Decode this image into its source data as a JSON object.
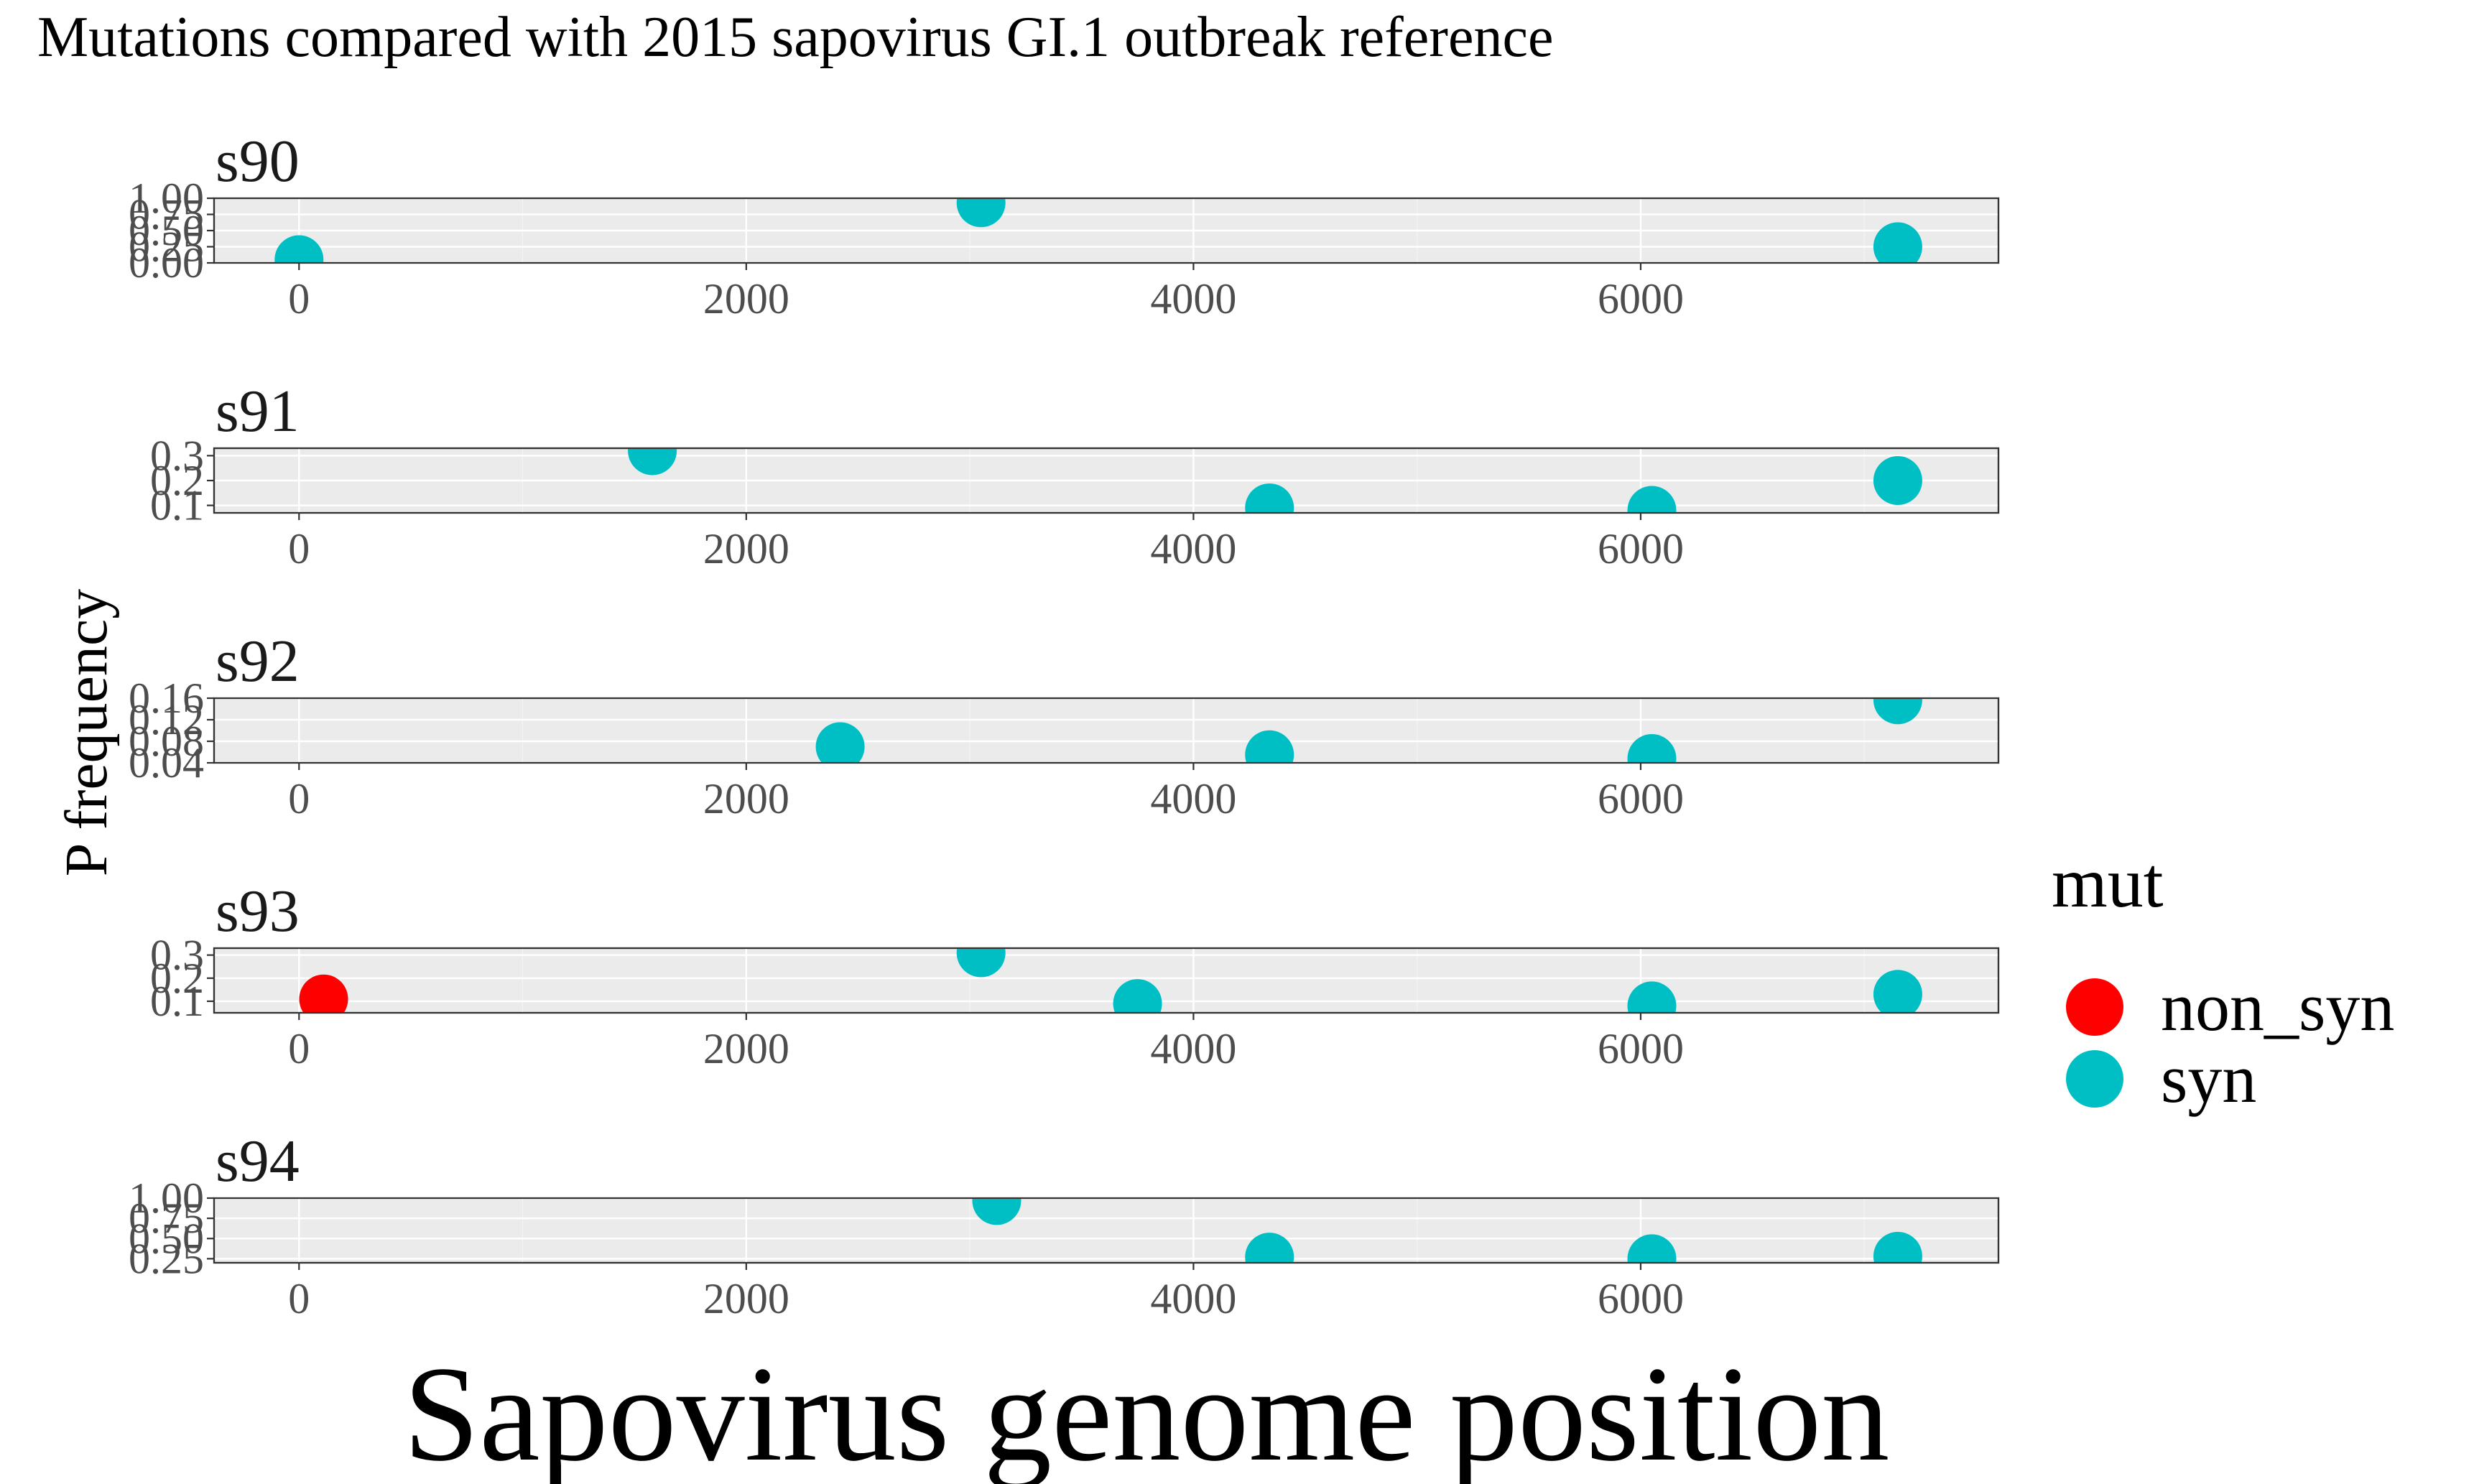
{
  "chart_data": {
    "type": "scatter",
    "title": "Mutations compared with 2015 sapovirus GI.1 outbreak reference",
    "xlabel": "Sapovirus genome position",
    "ylabel": "P frequency",
    "xlim": [
      -380,
      7600
    ],
    "x_ticks": [
      0,
      2000,
      4000,
      6000
    ],
    "x_tick_labels": [
      "0",
      "2000",
      "4000",
      "6000"
    ],
    "legend": {
      "title": "mut",
      "position": "right",
      "entries": [
        {
          "label": "non_syn",
          "color": "#F8766D"
        },
        {
          "label": "syn",
          "color": "#00BFC4"
        }
      ]
    },
    "colors": {
      "non_syn": "#FF0000",
      "syn": "#00BFC4"
    },
    "grid": true,
    "facets": [
      {
        "label": "s90",
        "ylim": [
          0.0,
          1.0
        ],
        "y_ticks": [
          0.0,
          0.25,
          0.5,
          0.75,
          1.0
        ],
        "y_tick_labels": [
          "0.00",
          "0.25",
          "0.50",
          "0.75",
          "1.00"
        ],
        "points": [
          {
            "x": 0,
            "y": 0.05,
            "mut": "syn"
          },
          {
            "x": 3050,
            "y": 0.93,
            "mut": "syn"
          },
          {
            "x": 7150,
            "y": 0.25,
            "mut": "syn"
          }
        ]
      },
      {
        "label": "s91",
        "ylim": [
          0.07,
          0.33
        ],
        "y_ticks": [
          0.1,
          0.2,
          0.3
        ],
        "y_tick_labels": [
          "0.1",
          "0.2",
          "0.3"
        ],
        "points": [
          {
            "x": 1580,
            "y": 0.32,
            "mut": "syn"
          },
          {
            "x": 4340,
            "y": 0.09,
            "mut": "syn"
          },
          {
            "x": 6050,
            "y": 0.08,
            "mut": "syn"
          },
          {
            "x": 7150,
            "y": 0.2,
            "mut": "syn"
          }
        ]
      },
      {
        "label": "s92",
        "ylim": [
          0.04,
          0.16
        ],
        "y_ticks": [
          0.04,
          0.08,
          0.12,
          0.16
        ],
        "y_tick_labels": [
          "0.04",
          "0.08",
          "0.12",
          "0.16"
        ],
        "points": [
          {
            "x": 2420,
            "y": 0.07,
            "mut": "syn"
          },
          {
            "x": 4340,
            "y": 0.055,
            "mut": "syn"
          },
          {
            "x": 6050,
            "y": 0.048,
            "mut": "syn"
          },
          {
            "x": 7150,
            "y": 0.157,
            "mut": "syn"
          }
        ]
      },
      {
        "label": "s93",
        "ylim": [
          0.05,
          0.33
        ],
        "y_ticks": [
          0.1,
          0.2,
          0.3
        ],
        "y_tick_labels": [
          "0.1",
          "0.2",
          "0.3"
        ],
        "points": [
          {
            "x": 110,
            "y": 0.11,
            "mut": "non_syn"
          },
          {
            "x": 3050,
            "y": 0.31,
            "mut": "syn"
          },
          {
            "x": 3750,
            "y": 0.09,
            "mut": "syn"
          },
          {
            "x": 6050,
            "y": 0.08,
            "mut": "syn"
          },
          {
            "x": 7150,
            "y": 0.13,
            "mut": "syn"
          }
        ]
      },
      {
        "label": "s94",
        "ylim": [
          0.2,
          1.0
        ],
        "y_ticks": [
          0.25,
          0.5,
          0.75,
          1.0
        ],
        "y_tick_labels": [
          "0.25",
          "0.50",
          "0.75",
          "1.00"
        ],
        "points": [
          {
            "x": 3120,
            "y": 0.97,
            "mut": "syn"
          },
          {
            "x": 4340,
            "y": 0.27,
            "mut": "syn"
          },
          {
            "x": 6050,
            "y": 0.25,
            "mut": "syn"
          },
          {
            "x": 7150,
            "y": 0.28,
            "mut": "syn"
          }
        ]
      }
    ]
  }
}
